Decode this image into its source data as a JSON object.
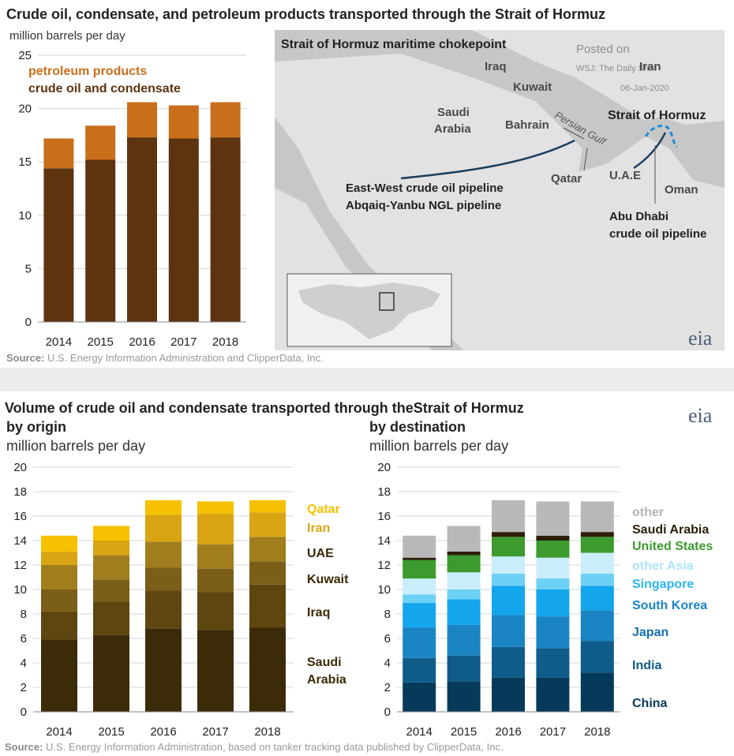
{
  "top": {
    "title": "Crude oil, condensate, and petroleum products transported through the Strait of Hormuz",
    "source_label": "Source:",
    "source_text": "U.S. Energy Information Administration and ClipperData, Inc.",
    "logo": "eia"
  },
  "map": {
    "title": "Strait of Hormuz maritime chokepoint",
    "watermark_1": "Posted on",
    "watermark_2": "WSJ: The Daily Shot",
    "watermark_3": "06-Jan-2020",
    "labels": {
      "iraq": "Iraq",
      "iran": "Iran",
      "kuwait": "Kuwait",
      "saudi_1": "Saudi",
      "saudi_2": "Arabia",
      "bahrain": "Bahrain",
      "gulf": "Persian Gulf",
      "strait": "Strait of Hormuz",
      "qatar": "Qatar",
      "uae": "U.A.E",
      "oman": "Oman",
      "pipe_ew": "East-West crude oil pipeline",
      "pipe_ngl": "Abqaiq-Yanbu NGL pipeline",
      "abu_1": "Abu Dhabi",
      "abu_2": "crude oil pipeline"
    },
    "colors": {
      "land": "#e2e2e2",
      "sea": "#c7c7c7",
      "pipeline": "#1b3d5c",
      "strait_route": "#1f8fd6"
    }
  },
  "bottom": {
    "title": "Volume of crude oil and condensate transported through theStrait of Hormuz",
    "source_label": "Source:",
    "source_text": "U.S. Energy Information Administration, based on tanker tracking data published by ClipperData, Inc.",
    "logo": "eia"
  },
  "chart_data": [
    {
      "type": "bar",
      "stacked": true,
      "subtitle": "million barrels per day",
      "categories": [
        "2014",
        "2015",
        "2016",
        "2017",
        "2018"
      ],
      "ylim": [
        0,
        25
      ],
      "yticks": [
        "0",
        "5",
        "10",
        "15",
        "20",
        "25"
      ],
      "series": [
        {
          "name": "crude oil and condensate",
          "color": "#5e3310",
          "values": [
            14.4,
            15.2,
            17.3,
            17.2,
            17.3
          ]
        },
        {
          "name": "petroleum products",
          "color": "#c96f1c",
          "values": [
            2.8,
            3.2,
            3.3,
            3.1,
            3.3
          ]
        }
      ],
      "legend_order": [
        "petroleum products",
        "crude oil and condensate"
      ]
    },
    {
      "type": "bar",
      "stacked": true,
      "title": "by origin",
      "subtitle": "million barrels per day",
      "categories": [
        "2014",
        "2015",
        "2016",
        "2017",
        "2018"
      ],
      "ylim": [
        0,
        20
      ],
      "yticks": [
        "0",
        "2",
        "4",
        "6",
        "8",
        "10",
        "12",
        "14",
        "16",
        "18",
        "20"
      ],
      "series": [
        {
          "name": "Saudi Arabia",
          "color": "#3c2b09",
          "values": [
            5.9,
            6.3,
            6.8,
            6.7,
            6.9
          ]
        },
        {
          "name": "Iraq",
          "color": "#5e4610",
          "values": [
            2.3,
            2.7,
            3.1,
            3.1,
            3.5
          ]
        },
        {
          "name": "Kuwait",
          "color": "#7b5e17",
          "values": [
            1.8,
            1.8,
            1.9,
            1.9,
            1.9
          ]
        },
        {
          "name": "UAE",
          "color": "#a07d1d",
          "values": [
            2.0,
            2.0,
            2.1,
            2.0,
            2.0
          ]
        },
        {
          "name": "Iran",
          "color": "#d9a514",
          "values": [
            1.1,
            1.2,
            2.2,
            2.5,
            2.0
          ]
        },
        {
          "name": "Qatar",
          "color": "#f6c100",
          "values": [
            1.3,
            1.2,
            1.2,
            1.0,
            1.0
          ]
        }
      ],
      "legend_order": [
        "Qatar",
        "Iran",
        "UAE",
        "Kuwait",
        "Iraq",
        "Saudi Arabia"
      ],
      "legend_color": "#3a2a08"
    },
    {
      "type": "bar",
      "stacked": true,
      "title": "by destination",
      "subtitle": "million barrels per day",
      "categories": [
        "2014",
        "2015",
        "2016",
        "2017",
        "2018"
      ],
      "ylim": [
        0,
        20
      ],
      "yticks": [
        "0",
        "2",
        "4",
        "6",
        "8",
        "10",
        "12",
        "14",
        "16",
        "18",
        "20"
      ],
      "series": [
        {
          "name": "China",
          "color": "#053a5b",
          "values": [
            2.4,
            2.5,
            2.8,
            2.8,
            3.2
          ]
        },
        {
          "name": "India",
          "color": "#0f5c8a",
          "values": [
            2.0,
            2.1,
            2.5,
            2.4,
            2.6
          ]
        },
        {
          "name": "Japan",
          "color": "#1b85c4",
          "values": [
            2.5,
            2.5,
            2.6,
            2.6,
            2.5
          ]
        },
        {
          "name": "South Korea",
          "color": "#14a6ec",
          "values": [
            2.0,
            2.1,
            2.4,
            2.2,
            2.0
          ]
        },
        {
          "name": "Singapore",
          "color": "#6dd0f5",
          "values": [
            0.7,
            0.8,
            1.0,
            0.9,
            1.0
          ]
        },
        {
          "name": "other Asia",
          "color": "#c9edfb",
          "values": [
            1.3,
            1.4,
            1.4,
            1.7,
            1.7
          ]
        },
        {
          "name": "United States",
          "color": "#3d9a2f",
          "values": [
            1.5,
            1.4,
            1.6,
            1.4,
            1.3
          ]
        },
        {
          "name": "Saudi Arabia",
          "color": "#2b1e0a",
          "values": [
            0.2,
            0.3,
            0.4,
            0.4,
            0.4
          ]
        },
        {
          "name": "other",
          "color": "#b9b9b9",
          "values": [
            1.8,
            2.1,
            2.6,
            2.8,
            2.5
          ]
        }
      ],
      "legend_order": [
        "other",
        "Saudi Arabia",
        "United States",
        "other Asia",
        "Singapore",
        "South Korea",
        "Japan",
        "India",
        "China"
      ],
      "legend_colors": [
        "#b4b4b4",
        "#2b1e0a",
        "#3d9a2f",
        "#aee4f8",
        "#2db6ef",
        "#1b85c4",
        "#1670b0",
        "#0f5c8a",
        "#053a5b"
      ]
    }
  ]
}
